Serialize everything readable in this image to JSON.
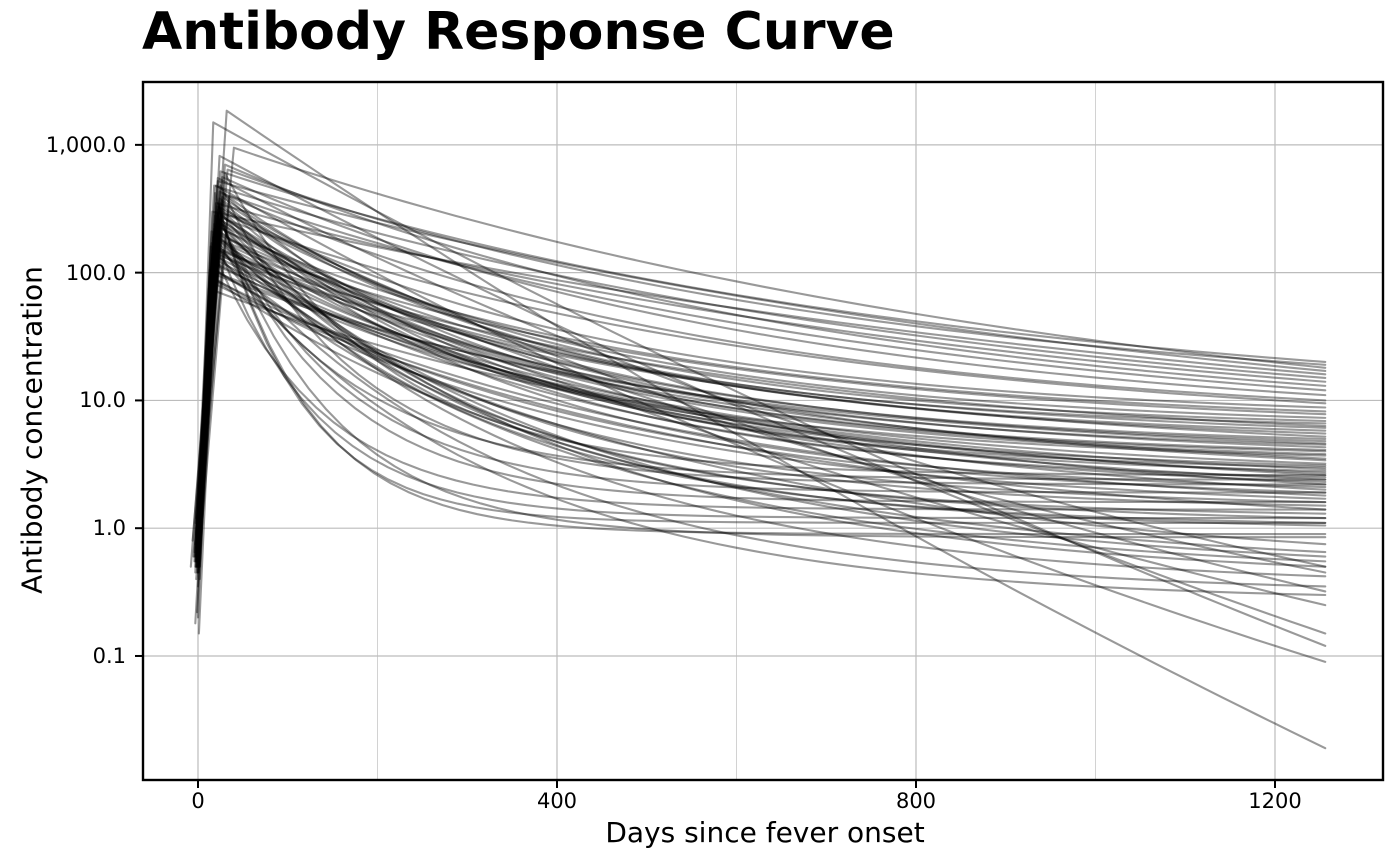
{
  "chart_data": {
    "type": "line",
    "title": "Antibody Response Curve",
    "xlabel": "Days since fever onset",
    "ylabel": "Antibody concentration",
    "y_scale": "log10",
    "grid": true,
    "xlim": [
      -62,
      1320
    ],
    "ylim": [
      0.011,
      3160
    ],
    "x_ticks": [
      0,
      400,
      800,
      1200
    ],
    "x_tick_labels": [
      "0",
      "400",
      "800",
      "1200"
    ],
    "x_minor_gridlines": [
      200,
      600,
      1000
    ],
    "y_ticks": [
      1000,
      100,
      10,
      1,
      0.1
    ],
    "y_tick_labels": [
      "1,000.0",
      "100.0",
      "10.0",
      "1.0",
      "0.1"
    ],
    "legend": "none",
    "n_curves": 83,
    "t_end_day": 1256,
    "line_color": "#000000",
    "line_opacity": 0.4,
    "line_width": 2.1,
    "grid_major_color": "#bcbcbc",
    "grid_minor_color": "#d2d2d2",
    "border_color": "#000000",
    "background_color": "#ffffff",
    "curve_params_schema": [
      "t_start_day",
      "v_start",
      "t_peak_day",
      "v_peak",
      "v_end_at_day1256",
      "log_decay_bend"
    ],
    "curve_model": "rise: straight on log scale from (t_start,v_start) to (t_peak,v_peak); decay: log10(v)=Lp+(Le-Lp)*(1-exp(-c*u))/(1-exp(-c)), u=(t-t_peak)/(t_end-t_peak)",
    "series": [
      [
        -2,
        0.55,
        32,
        1850,
        0.019,
        0.35
      ],
      [
        0,
        0.7,
        17,
        1500,
        0.12,
        0.35
      ],
      [
        -1,
        0.5,
        24,
        820,
        0.15,
        0.45
      ],
      [
        -1,
        0.8,
        40,
        950,
        18,
        1.2
      ],
      [
        0,
        0.6,
        25,
        620,
        20,
        1.5
      ],
      [
        -3,
        0.5,
        18,
        480,
        15,
        1.4
      ],
      [
        1,
        1.0,
        30,
        700,
        13,
        1.8
      ],
      [
        -2,
        0.7,
        22,
        520,
        17,
        1.1
      ],
      [
        0,
        0.45,
        35,
        400,
        12,
        1.6
      ],
      [
        -5,
        0.6,
        20,
        350,
        14,
        1.3
      ],
      [
        2,
        0.9,
        27,
        560,
        11,
        2.0
      ],
      [
        -1,
        0.55,
        16,
        300,
        16,
        1.0
      ],
      [
        0,
        0.75,
        24,
        430,
        10,
        2.2
      ],
      [
        -2,
        1.2,
        33,
        640,
        19,
        1.7
      ],
      [
        1,
        0.65,
        19,
        280,
        9.5,
        1.9
      ],
      [
        -1,
        0.5,
        14,
        160,
        3.2,
        2.8
      ],
      [
        0,
        0.8,
        18,
        220,
        4.5,
        3.1
      ],
      [
        -2,
        0.6,
        22,
        310,
        2.1,
        3.6
      ],
      [
        1,
        1.0,
        16,
        90,
        1.8,
        2.4
      ],
      [
        -3,
        0.18,
        20,
        140,
        5.2,
        2.2
      ],
      [
        0,
        0.7,
        25,
        260,
        3.8,
        3.3
      ],
      [
        -1,
        0.9,
        12,
        75,
        2.6,
        2.0
      ],
      [
        2,
        0.55,
        19,
        185,
        6.1,
        2.7
      ],
      [
        -4,
        0.65,
        23,
        240,
        1.5,
        4.0
      ],
      [
        0,
        0.35,
        15,
        120,
        2.9,
        2.5
      ],
      [
        -2,
        0.85,
        21,
        330,
        7.3,
        3.0
      ],
      [
        1,
        0.6,
        17,
        200,
        1.2,
        3.9
      ],
      [
        -1,
        0.75,
        26,
        280,
        4.1,
        3.4
      ],
      [
        0,
        0.5,
        13,
        105,
        3.5,
        2.1
      ],
      [
        -3,
        1.1,
        24,
        380,
        5.8,
        3.2
      ],
      [
        2,
        0.4,
        18,
        150,
        2.3,
        2.9
      ],
      [
        -1,
        0.6,
        20,
        230,
        8.2,
        2.6
      ],
      [
        0,
        0.95,
        15,
        170,
        1.6,
        3.7
      ],
      [
        -2,
        0.55,
        28,
        420,
        6.6,
        3.5
      ],
      [
        1,
        0.7,
        16,
        130,
        2.0,
        2.3
      ],
      [
        -8,
        0.5,
        22,
        290,
        4.8,
        3.1
      ],
      [
        0,
        0.8,
        19,
        210,
        1.1,
        4.2
      ],
      [
        -1,
        0.22,
        25,
        350,
        3.0,
        3.8
      ],
      [
        2,
        0.65,
        14,
        85,
        1.4,
        2.2
      ],
      [
        -2,
        0.9,
        21,
        250,
        5.5,
        2.8
      ],
      [
        0,
        0.6,
        17,
        190,
        7.8,
        2.4
      ],
      [
        -3,
        0.75,
        23,
        320,
        2.5,
        3.6
      ],
      [
        1,
        0.5,
        20,
        160,
        4.3,
        2.7
      ],
      [
        -1,
        1.05,
        15,
        110,
        1.9,
        3.0
      ],
      [
        0,
        0.45,
        27,
        390,
        6.9,
        3.3
      ],
      [
        -2,
        0.7,
        18,
        240,
        3.4,
        2.5
      ],
      [
        2,
        0.85,
        24,
        300,
        1.3,
        4.4
      ],
      [
        -4,
        0.55,
        16,
        140,
        2.7,
        2.6
      ],
      [
        0,
        0.65,
        21,
        270,
        5.0,
        3.2
      ],
      [
        -1,
        0.8,
        13,
        95,
        1.7,
        2.9
      ],
      [
        1,
        0.6,
        26,
        360,
        4.0,
        3.5
      ],
      [
        -2,
        0.5,
        19,
        180,
        2.2,
        2.3
      ],
      [
        0,
        1.15,
        23,
        330,
        8.8,
        2.8
      ],
      [
        -3,
        0.6,
        15,
        125,
        3.7,
        3.1
      ],
      [
        1,
        0.15,
        22,
        260,
        1.05,
        4.1
      ],
      [
        -1,
        0.55,
        17,
        155,
        6.3,
        2.2
      ],
      [
        0,
        0.9,
        29,
        410,
        2.8,
        3.7
      ],
      [
        -2,
        0.65,
        14,
        100,
        4.6,
        2.4
      ],
      [
        2,
        0.5,
        20,
        220,
        3.1,
        3.4
      ],
      [
        -1,
        0.7,
        18,
        175,
        2.4,
        2.7
      ],
      [
        -1,
        0.6,
        20,
        300,
        1.6,
        9
      ],
      [
        0,
        0.8,
        25,
        480,
        2.2,
        8
      ],
      [
        -2,
        0.5,
        18,
        200,
        1.2,
        11
      ],
      [
        1,
        0.7,
        30,
        600,
        2.6,
        7
      ],
      [
        -3,
        0.55,
        22,
        350,
        0.9,
        12
      ],
      [
        0,
        0.9,
        16,
        150,
        1.4,
        10
      ],
      [
        -1,
        0.45,
        24,
        260,
        1.9,
        8.5
      ],
      [
        2,
        0.65,
        19,
        420,
        1.1,
        13
      ],
      [
        0,
        0.5,
        27,
        240,
        0.85,
        9.5
      ],
      [
        -2,
        0.75,
        21,
        180,
        2.4,
        7.5
      ],
      [
        -1,
        0.5,
        18,
        140,
        0.55,
        3.0
      ],
      [
        0,
        0.7,
        22,
        210,
        0.42,
        3.4
      ],
      [
        -2,
        0.6,
        16,
        90,
        0.65,
        2.6
      ],
      [
        1,
        0.45,
        20,
        170,
        0.35,
        3.8
      ],
      [
        -6,
        0.8,
        24,
        260,
        0.5,
        3.2
      ],
      [
        0,
        0.2,
        14,
        110,
        0.75,
        2.3
      ],
      [
        -1,
        0.65,
        19,
        150,
        0.3,
        4.0
      ],
      [
        2,
        0.5,
        23,
        190,
        0.6,
        2.9
      ],
      [
        -3,
        0.45,
        20,
        480,
        0.09,
        0.6
      ],
      [
        1,
        0.9,
        26,
        300,
        0.32,
        0.7
      ],
      [
        -4,
        0.6,
        15,
        210,
        0.45,
        0.8
      ],
      [
        2,
        1.1,
        22,
        550,
        0.5,
        0.9
      ],
      [
        -2,
        0.4,
        28,
        150,
        0.25,
        0.6
      ]
    ]
  }
}
